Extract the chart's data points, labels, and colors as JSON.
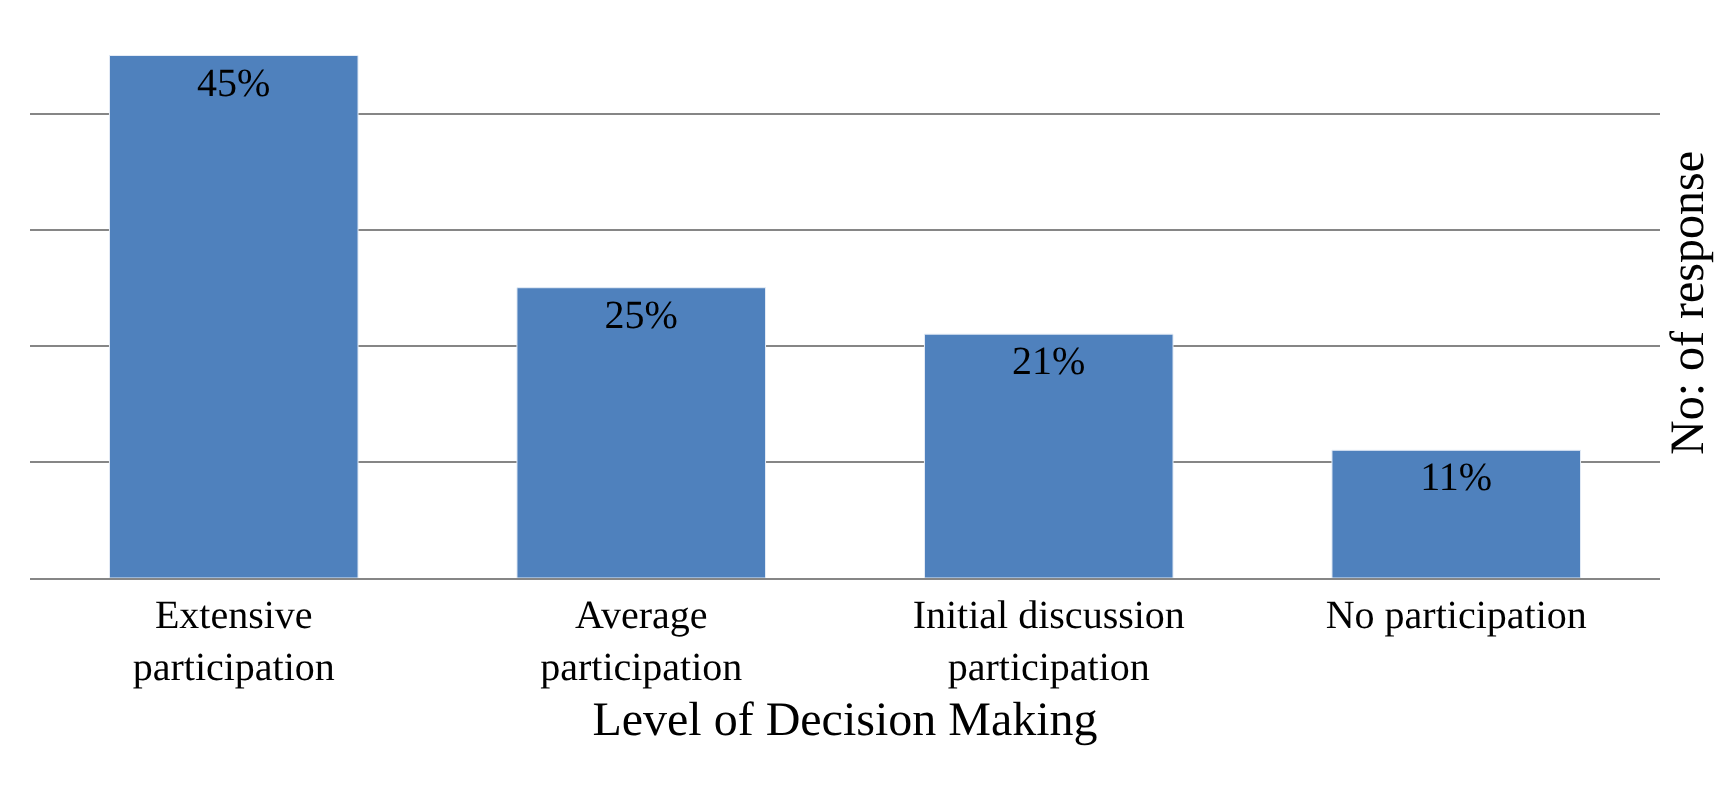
{
  "chart_data": {
    "type": "bar",
    "xlabel": "Level of Decision Making",
    "ylabel": "No: of response",
    "categories": [
      "Extensive participation",
      "Average participation",
      "Initial discussion participation",
      "No participation"
    ],
    "values": [
      45,
      25,
      21,
      11
    ],
    "value_labels": [
      "45%",
      "25%",
      "21%",
      "11%"
    ],
    "color": "#4f81bd",
    "grid": "y",
    "tick_labels": "x"
  }
}
